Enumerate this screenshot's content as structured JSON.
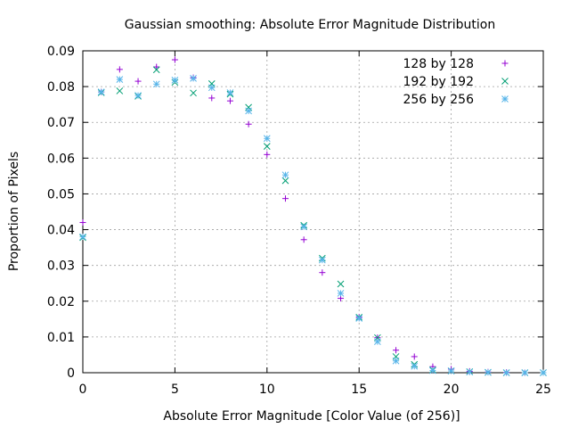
{
  "chart_data": {
    "type": "scatter",
    "title": "Gaussian smoothing: Absolute Error Magnitude Distribution",
    "xlabel": "Absolute Error Magnitude [Color Value (of 256)]",
    "ylabel": "Proportion of Pixels",
    "xlim": [
      0,
      25
    ],
    "ylim": [
      0,
      0.09
    ],
    "xticks": [
      0,
      5,
      10,
      15,
      20,
      25
    ],
    "xtick_labels": [
      "0",
      "5",
      "10",
      "15",
      "20",
      "25"
    ],
    "yticks": [
      0,
      0.01,
      0.02,
      0.03,
      0.04,
      0.05,
      0.06,
      0.07,
      0.08,
      0.09
    ],
    "ytick_labels": [
      "0",
      "0.01",
      "0.02",
      "0.03",
      "0.04",
      "0.05",
      "0.06",
      "0.07",
      "0.08",
      "0.09"
    ],
    "grid": true,
    "legend_position": "top-right",
    "series": [
      {
        "name": "128 by 128",
        "marker": "plus",
        "color": "#9400d3",
        "x": [
          0,
          1,
          2,
          3,
          4,
          5,
          6,
          7,
          8,
          9,
          10,
          11,
          12,
          13,
          14,
          15,
          16,
          17,
          18,
          19,
          20,
          21,
          22,
          23,
          24,
          25
        ],
        "y": [
          0.042,
          0.0785,
          0.0848,
          0.0815,
          0.0855,
          0.0875,
          0.0825,
          0.0768,
          0.076,
          0.0695,
          0.061,
          0.0487,
          0.0372,
          0.028,
          0.0208,
          0.0155,
          0.0098,
          0.0063,
          0.0045,
          0.0017,
          0.001,
          0.0004,
          0.0002,
          0.0001,
          0.0,
          0.0
        ]
      },
      {
        "name": "192 by 192",
        "marker": "cross",
        "color": "#009e73",
        "x": [
          0,
          1,
          2,
          3,
          4,
          5,
          6,
          7,
          8,
          9,
          10,
          11,
          12,
          13,
          14,
          15,
          16,
          17,
          18,
          19,
          20,
          21,
          22,
          23,
          24,
          25
        ],
        "y": [
          0.0378,
          0.0783,
          0.0788,
          0.0773,
          0.0847,
          0.0812,
          0.0782,
          0.0808,
          0.0779,
          0.0742,
          0.0633,
          0.0537,
          0.0412,
          0.032,
          0.0248,
          0.0155,
          0.0098,
          0.0045,
          0.0023,
          0.0008,
          0.0005,
          0.0003,
          0.0001,
          0.0,
          0.0,
          0.0
        ]
      },
      {
        "name": "256 by 256",
        "marker": "star",
        "color": "#56b4e9",
        "x": [
          0,
          1,
          2,
          3,
          4,
          5,
          6,
          7,
          8,
          9,
          10,
          11,
          12,
          13,
          14,
          15,
          16,
          17,
          18,
          19,
          20,
          21,
          22,
          23,
          24,
          25
        ],
        "y": [
          0.038,
          0.0785,
          0.082,
          0.0775,
          0.0807,
          0.0818,
          0.0823,
          0.0797,
          0.0783,
          0.0732,
          0.0655,
          0.0553,
          0.0408,
          0.0315,
          0.0222,
          0.0152,
          0.0087,
          0.0033,
          0.0018,
          0.0006,
          0.0005,
          0.0002,
          0.0001,
          0.0,
          0.0,
          0.0
        ]
      }
    ]
  }
}
